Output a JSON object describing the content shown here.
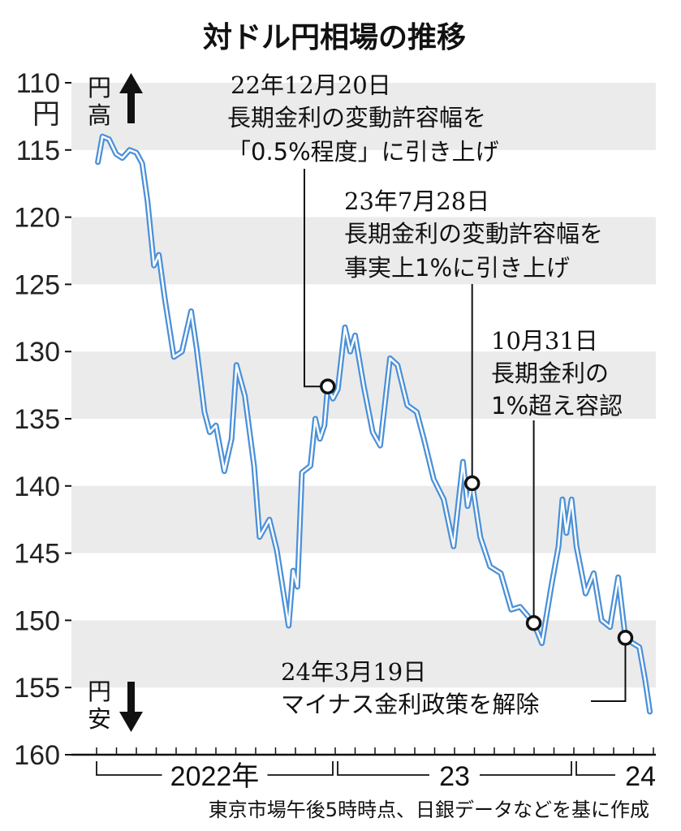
{
  "chart_data": {
    "type": "line",
    "title": "対ドル円相場の推移",
    "ylim": [
      110,
      160
    ],
    "y_inverted": true,
    "y_ticks": [
      "110",
      "115",
      "120",
      "125",
      "130",
      "135",
      "140",
      "145",
      "150",
      "155",
      "160"
    ],
    "y_unit_label": "円",
    "direction_labels": {
      "up": "円高",
      "down": "円安"
    },
    "x_range": [
      "2022-01-01",
      "2024-04-30"
    ],
    "x_ticks": "monthly",
    "x_year_labels": [
      "2022年",
      "23",
      "24"
    ],
    "grid_bands": true,
    "line_color": "#4a90d9",
    "source_note": "東京市場午後5時時点、日銀データなどを基に作成",
    "series": [
      {
        "points": [
          [
            "2022-01-03",
            115.9
          ],
          [
            "2022-01-10",
            114.0
          ],
          [
            "2022-01-20",
            114.2
          ],
          [
            "2022-01-31",
            115.3
          ],
          [
            "2022-02-10",
            115.6
          ],
          [
            "2022-02-21",
            115.0
          ],
          [
            "2022-03-01",
            115.2
          ],
          [
            "2022-03-10",
            116.0
          ],
          [
            "2022-03-18",
            118.8
          ],
          [
            "2022-03-28",
            123.6
          ],
          [
            "2022-04-05",
            122.8
          ],
          [
            "2022-04-14",
            126.0
          ],
          [
            "2022-04-28",
            130.4
          ],
          [
            "2022-05-10",
            130.0
          ],
          [
            "2022-05-24",
            127.0
          ],
          [
            "2022-06-02",
            129.8
          ],
          [
            "2022-06-14",
            134.5
          ],
          [
            "2022-06-22",
            136.0
          ],
          [
            "2022-07-01",
            135.5
          ],
          [
            "2022-07-14",
            138.9
          ],
          [
            "2022-07-25",
            136.5
          ],
          [
            "2022-08-02",
            131.0
          ],
          [
            "2022-08-15",
            133.3
          ],
          [
            "2022-08-29",
            138.5
          ],
          [
            "2022-09-07",
            143.8
          ],
          [
            "2022-09-22",
            142.5
          ],
          [
            "2022-10-03",
            144.8
          ],
          [
            "2022-10-21",
            150.4
          ],
          [
            "2022-10-28",
            146.3
          ],
          [
            "2022-11-04",
            147.5
          ],
          [
            "2022-11-11",
            139.0
          ],
          [
            "2022-11-24",
            138.5
          ],
          [
            "2022-12-01",
            135.0
          ],
          [
            "2022-12-08",
            136.5
          ],
          [
            "2022-12-15",
            135.5
          ],
          [
            "2022-12-20",
            132.6
          ],
          [
            "2022-12-28",
            133.5
          ],
          [
            "2023-01-05",
            132.8
          ],
          [
            "2023-01-16",
            128.2
          ],
          [
            "2023-01-24",
            130.0
          ],
          [
            "2023-02-01",
            128.8
          ],
          [
            "2023-02-14",
            132.5
          ],
          [
            "2023-02-28",
            136.0
          ],
          [
            "2023-03-09",
            137.0
          ],
          [
            "2023-03-24",
            130.5
          ],
          [
            "2023-04-05",
            131.0
          ],
          [
            "2023-04-20",
            134.0
          ],
          [
            "2023-05-04",
            134.5
          ],
          [
            "2023-05-15",
            136.5
          ],
          [
            "2023-05-30",
            139.5
          ],
          [
            "2023-06-15",
            141.0
          ],
          [
            "2023-06-30",
            144.5
          ],
          [
            "2023-07-14",
            138.2
          ],
          [
            "2023-07-21",
            141.5
          ],
          [
            "2023-07-28",
            139.8
          ],
          [
            "2023-08-10",
            143.8
          ],
          [
            "2023-08-25",
            146.0
          ],
          [
            "2023-09-11",
            146.5
          ],
          [
            "2023-09-27",
            149.2
          ],
          [
            "2023-10-10",
            149.0
          ],
          [
            "2023-10-31",
            150.2
          ],
          [
            "2023-11-13",
            151.7
          ],
          [
            "2023-11-28",
            147.3
          ],
          [
            "2023-12-08",
            144.5
          ],
          [
            "2023-12-14",
            141.0
          ],
          [
            "2023-12-20",
            143.5
          ],
          [
            "2023-12-28",
            141.0
          ],
          [
            "2024-01-05",
            144.5
          ],
          [
            "2024-01-19",
            148.0
          ],
          [
            "2024-02-01",
            146.5
          ],
          [
            "2024-02-13",
            150.0
          ],
          [
            "2024-02-26",
            150.5
          ],
          [
            "2024-03-08",
            146.8
          ],
          [
            "2024-03-19",
            151.3
          ],
          [
            "2024-03-27",
            151.6
          ],
          [
            "2024-04-10",
            152.0
          ],
          [
            "2024-04-19",
            154.5
          ],
          [
            "2024-04-26",
            156.8
          ]
        ]
      }
    ],
    "annotations": [
      {
        "date": "2022-12-20",
        "value": 132.6,
        "lines": [
          "22年12月20日",
          "長期金利の変動許容幅を",
          "「0.5%程度」に引き上げ"
        ]
      },
      {
        "date": "2023-07-28",
        "value": 139.8,
        "lines": [
          "23年7月28日",
          "長期金利の変動許容幅を",
          "事実上1%に引き上げ"
        ]
      },
      {
        "date": "2023-10-31",
        "value": 150.2,
        "lines": [
          "10月31日",
          "長期金利の",
          "1%超え容認"
        ]
      },
      {
        "date": "2024-03-19",
        "value": 151.3,
        "lines": [
          "24年3月19日",
          "マイナス金利政策を解除"
        ]
      }
    ]
  }
}
